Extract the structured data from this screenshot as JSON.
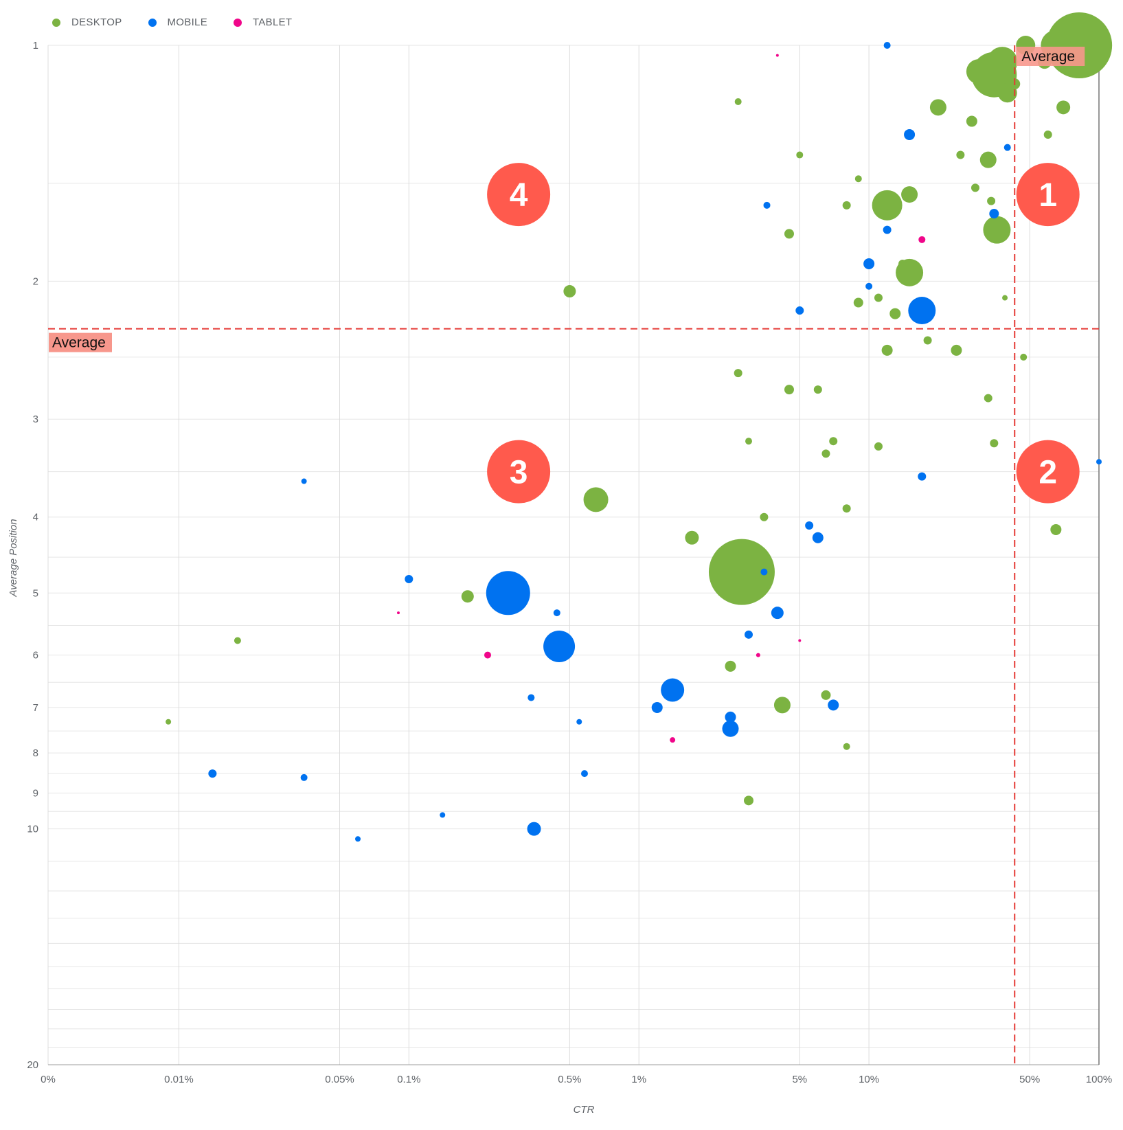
{
  "chart_data": {
    "type": "scatter",
    "title": "",
    "xlabel": "CTR",
    "ylabel": "Average Position",
    "x_scale": "log",
    "y_scale": "log-reversed",
    "x_ticks": [
      "0%",
      "0.01%",
      "0.05%",
      "0.1%",
      "0.5%",
      "1%",
      "5%",
      "10%",
      "50%",
      "100%"
    ],
    "y_ticks": [
      "1",
      "2",
      "3",
      "4",
      "5",
      "6",
      "7",
      "8",
      "9",
      "10",
      "20"
    ],
    "xlim": [
      "0%",
      "100%"
    ],
    "ylim": [
      20,
      1
    ],
    "grid": true,
    "legend": "top-left",
    "colors": {
      "DESKTOP": "#7cb342",
      "MOBILE": "#0072f0",
      "TABLET": "#f0068a",
      "average": "#e53935",
      "badge": "#ff5a4d",
      "average_label_bg": "#f7978c"
    },
    "average_lines": {
      "ctr": "43%",
      "position": 2.3,
      "label": "Average"
    },
    "quadrant_labels": [
      {
        "text": "1",
        "ctr": "60%",
        "position": 1.55
      },
      {
        "text": "2",
        "ctr": "60%",
        "position": 3.5
      },
      {
        "text": "3",
        "ctr": "0.3%",
        "position": 3.5
      },
      {
        "text": "4",
        "ctr": "0.3%",
        "position": 1.55
      }
    ],
    "size_note": "bubble size proportional to impressions (relative)",
    "series": [
      {
        "name": "DESKTOP",
        "points": [
          [
            "82%",
            1.0,
            48
          ],
          [
            "35%",
            1.09,
            33
          ],
          [
            "38%",
            1.05,
            22
          ],
          [
            "65%",
            1.0,
            22
          ],
          [
            "48%",
            1.0,
            14
          ],
          [
            "40%",
            1.15,
            14
          ],
          [
            "30%",
            1.08,
            18
          ],
          [
            "20%",
            1.2,
            12
          ],
          [
            "33%",
            1.4,
            12
          ],
          [
            "70%",
            1.2,
            10
          ],
          [
            "58%",
            1.05,
            10
          ],
          [
            "43%",
            1.12,
            8
          ],
          [
            "28%",
            1.25,
            8
          ],
          [
            "60%",
            1.3,
            6
          ],
          [
            "25%",
            1.38,
            6
          ],
          [
            "12%",
            1.6,
            22
          ],
          [
            "15%",
            1.55,
            12
          ],
          [
            "36%",
            1.72,
            20
          ],
          [
            "34%",
            1.58,
            6
          ],
          [
            "29%",
            1.52,
            6
          ],
          [
            "15%",
            1.95,
            20
          ],
          [
            "13%",
            2.2,
            8
          ],
          [
            "11%",
            2.1,
            6
          ],
          [
            "24%",
            2.45,
            8
          ],
          [
            "18%",
            2.38,
            6
          ],
          [
            "12%",
            2.45,
            8
          ],
          [
            "33%",
            2.82,
            6
          ],
          [
            "35%",
            3.22,
            6
          ],
          [
            "11%",
            3.25,
            6
          ],
          [
            "7%",
            3.2,
            6
          ],
          [
            "14%",
            1.9,
            6
          ],
          [
            "8%",
            1.6,
            6
          ],
          [
            "9%",
            1.48,
            5
          ],
          [
            "4.5%",
            1.74,
            7
          ],
          [
            "6%",
            2.75,
            6
          ],
          [
            "5%",
            1.38,
            5
          ],
          [
            "2.7%",
            1.18,
            5
          ],
          [
            "9%",
            2.13,
            7
          ],
          [
            "4.5%",
            2.75,
            7
          ],
          [
            "65%",
            4.15,
            8
          ],
          [
            "2.8%",
            4.7,
            48
          ],
          [
            "1.7%",
            4.25,
            10
          ],
          [
            "0.65%",
            3.8,
            18
          ],
          [
            "0.5%",
            2.06,
            9
          ],
          [
            "0.18%",
            5.05,
            9
          ],
          [
            "2.5%",
            6.2,
            8
          ],
          [
            "4.2%",
            6.95,
            12
          ],
          [
            "6.5%",
            6.75,
            7
          ],
          [
            "8%",
            7.85,
            5
          ],
          [
            "3%",
            9.2,
            7
          ],
          [
            "3%",
            3.2,
            5
          ],
          [
            "2.7%",
            2.62,
            6
          ],
          [
            "3.5%",
            4.0,
            6
          ],
          [
            "8%",
            3.9,
            6
          ],
          [
            "6.5%",
            3.32,
            6
          ],
          [
            "0.018%",
            5.75,
            5
          ],
          [
            "0.009%",
            7.3,
            4
          ],
          [
            "47%",
            2.5,
            5
          ],
          [
            "39%",
            2.1,
            4
          ],
          [
            "52%",
            1.62,
            5
          ]
        ]
      },
      {
        "name": "MOBILE",
        "points": [
          [
            "0.27%",
            5.0,
            32
          ],
          [
            "0.45%",
            5.85,
            23
          ],
          [
            "1.4%",
            6.65,
            17
          ],
          [
            "17%",
            2.18,
            20
          ],
          [
            "17%",
            3.55,
            6
          ],
          [
            "15%",
            1.3,
            8
          ],
          [
            "35%",
            1.64,
            7
          ],
          [
            "12%",
            1.72,
            6
          ],
          [
            "10%",
            1.9,
            8
          ],
          [
            "10%",
            2.03,
            5
          ],
          [
            "6%",
            4.25,
            8
          ],
          [
            "5.5%",
            4.1,
            6
          ],
          [
            "4%",
            5.3,
            9
          ],
          [
            "3%",
            5.65,
            6
          ],
          [
            "2.5%",
            7.2,
            8
          ],
          [
            "2.5%",
            7.45,
            12
          ],
          [
            "1.2%",
            7.0,
            8
          ],
          [
            "7%",
            6.95,
            8
          ],
          [
            "0.35%",
            10.0,
            10
          ],
          [
            "0.014%",
            8.5,
            6
          ],
          [
            "0.035%",
            8.6,
            5
          ],
          [
            "0.1%",
            4.8,
            6
          ],
          [
            "0.34%",
            6.8,
            5
          ],
          [
            "0.44%",
            5.3,
            5
          ],
          [
            "0.58%",
            8.5,
            5
          ],
          [
            "0.55%",
            7.3,
            4
          ],
          [
            "0.06%",
            10.3,
            4
          ],
          [
            "5%",
            2.18,
            6
          ],
          [
            "3.6%",
            1.6,
            5
          ],
          [
            "0.035%",
            3.6,
            4
          ],
          [
            "100%",
            3.4,
            4
          ],
          [
            "12%",
            1.0,
            5
          ],
          [
            "40%",
            1.35,
            5
          ],
          [
            "0.14%",
            9.6,
            4
          ],
          [
            "3.5%",
            4.7,
            5
          ]
        ]
      },
      {
        "name": "TABLET",
        "points": [
          [
            "17%",
            1.77,
            5
          ],
          [
            "0.22%",
            6.0,
            5
          ],
          [
            "1.4%",
            7.7,
            4
          ],
          [
            "3.3%",
            6.0,
            3
          ],
          [
            "0.09%",
            5.3,
            2
          ],
          [
            "4%",
            1.03,
            2
          ],
          [
            "5%",
            5.75,
            2
          ]
        ]
      }
    ]
  }
}
